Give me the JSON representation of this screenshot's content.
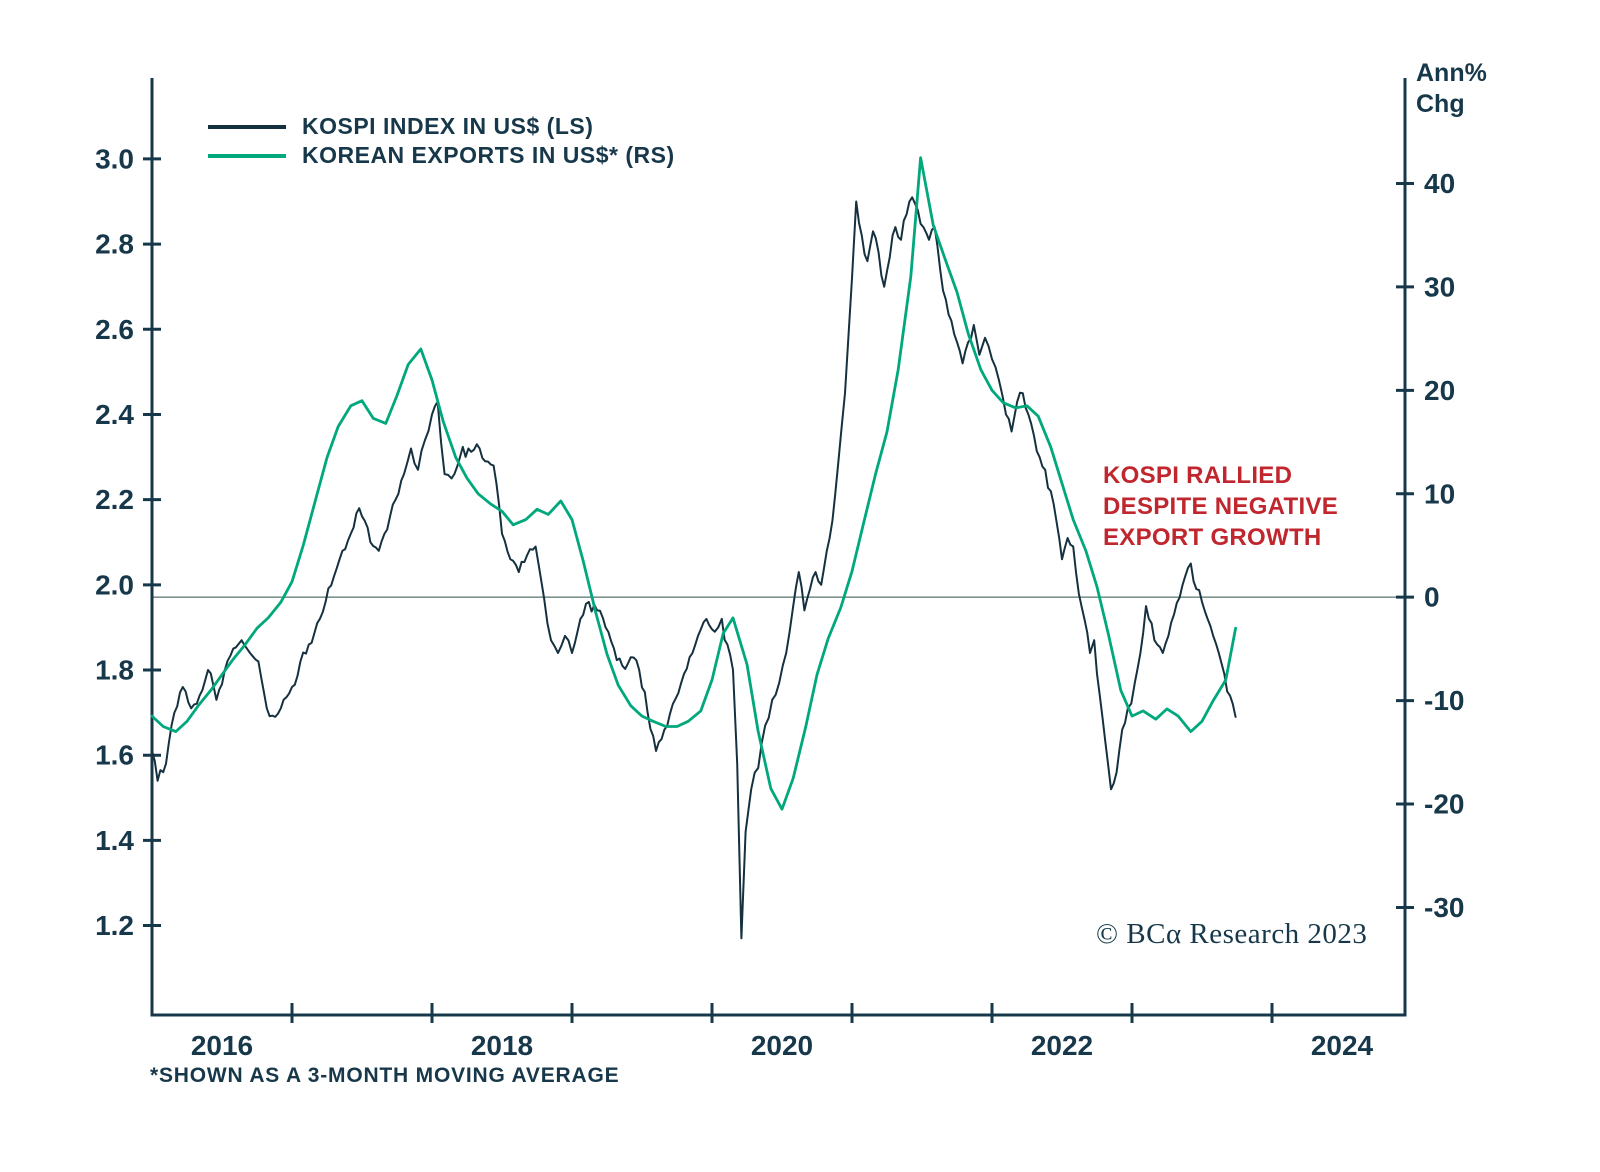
{
  "colors": {
    "navy": "#17384a",
    "kospi_line": "#15313f",
    "exports_line": "#00a87c",
    "annotation_red": "#c0262d",
    "zero_line": "#7d948f",
    "background": "#ffffff"
  },
  "legend": {
    "items": [
      {
        "label": "KOSPI INDEX IN US$ (LS)",
        "color": "#15313f"
      },
      {
        "label": "KOREAN EXPORTS IN US$* (RS)",
        "color": "#00a87c"
      }
    ]
  },
  "right_axis_title": {
    "lines": [
      "Ann%",
      "Chg"
    ]
  },
  "annotation": {
    "color": "#c0262d",
    "lines": [
      "KOSPI RALLIED",
      "DESPITE NEGATIVE",
      "EXPORT GROWTH"
    ]
  },
  "copyright": "© BCα Research 2023",
  "footnote": "*SHOWN AS A 3-MONTH MOVING AVERAGE",
  "chart_data": {
    "type": "line",
    "title": "",
    "x_axis": {
      "lim": [
        2016.0,
        2024.95
      ],
      "tick_marks": [
        2017,
        2018,
        2019,
        2020,
        2021,
        2022,
        2023,
        2024
      ],
      "labels": [
        {
          "x": 2016.5,
          "text": "2016"
        },
        {
          "x": 2018.5,
          "text": "2018"
        },
        {
          "x": 2020.5,
          "text": "2020"
        },
        {
          "x": 2022.5,
          "text": "2022"
        },
        {
          "x": 2024.5,
          "text": "2024"
        }
      ]
    },
    "left_axis": {
      "lim": [
        0.99,
        3.19
      ],
      "ticks": [
        1.2,
        1.4,
        1.6,
        1.8,
        2.0,
        2.2,
        2.4,
        2.6,
        2.8,
        3.0
      ],
      "decimals": 1
    },
    "right_axis": {
      "title": "Ann% Chg",
      "lim": [
        -40.4,
        50.2
      ],
      "ticks": [
        -30,
        -20,
        -10,
        0,
        10,
        20,
        30,
        40
      ],
      "zero_line": true
    },
    "series": [
      {
        "name": "KOSPI INDEX IN US$ (LS)",
        "axis": "left",
        "color": "#15313f",
        "width": 2,
        "noise_amplitude": 0.016,
        "noise_seed": 9,
        "data": [
          [
            2016.0,
            1.61
          ],
          [
            2016.04,
            1.54
          ],
          [
            2016.1,
            1.58
          ],
          [
            2016.16,
            1.7
          ],
          [
            2016.22,
            1.76
          ],
          [
            2016.28,
            1.71
          ],
          [
            2016.34,
            1.74
          ],
          [
            2016.4,
            1.8
          ],
          [
            2016.46,
            1.73
          ],
          [
            2016.52,
            1.8
          ],
          [
            2016.58,
            1.85
          ],
          [
            2016.64,
            1.87
          ],
          [
            2016.7,
            1.84
          ],
          [
            2016.76,
            1.82
          ],
          [
            2016.82,
            1.71
          ],
          [
            2016.88,
            1.69
          ],
          [
            2016.94,
            1.73
          ],
          [
            2017.0,
            1.76
          ],
          [
            2017.06,
            1.82
          ],
          [
            2017.12,
            1.86
          ],
          [
            2017.18,
            1.91
          ],
          [
            2017.24,
            1.96
          ],
          [
            2017.3,
            2.02
          ],
          [
            2017.36,
            2.08
          ],
          [
            2017.42,
            2.12
          ],
          [
            2017.48,
            2.18
          ],
          [
            2017.52,
            2.15
          ],
          [
            2017.56,
            2.1
          ],
          [
            2017.62,
            2.08
          ],
          [
            2017.68,
            2.13
          ],
          [
            2017.74,
            2.2
          ],
          [
            2017.8,
            2.26
          ],
          [
            2017.85,
            2.32
          ],
          [
            2017.9,
            2.27
          ],
          [
            2017.95,
            2.34
          ],
          [
            2018.0,
            2.4
          ],
          [
            2018.04,
            2.43
          ],
          [
            2018.09,
            2.26
          ],
          [
            2018.14,
            2.25
          ],
          [
            2018.2,
            2.3
          ],
          [
            2018.26,
            2.32
          ],
          [
            2018.32,
            2.33
          ],
          [
            2018.38,
            2.29
          ],
          [
            2018.44,
            2.28
          ],
          [
            2018.5,
            2.12
          ],
          [
            2018.56,
            2.06
          ],
          [
            2018.62,
            2.03
          ],
          [
            2018.68,
            2.07
          ],
          [
            2018.74,
            2.09
          ],
          [
            2018.8,
            1.97
          ],
          [
            2018.85,
            1.87
          ],
          [
            2018.9,
            1.84
          ],
          [
            2018.95,
            1.88
          ],
          [
            2019.0,
            1.84
          ],
          [
            2019.06,
            1.92
          ],
          [
            2019.12,
            1.96
          ],
          [
            2019.18,
            1.94
          ],
          [
            2019.24,
            1.9
          ],
          [
            2019.3,
            1.85
          ],
          [
            2019.36,
            1.81
          ],
          [
            2019.42,
            1.83
          ],
          [
            2019.48,
            1.8
          ],
          [
            2019.54,
            1.7
          ],
          [
            2019.6,
            1.61
          ],
          [
            2019.66,
            1.66
          ],
          [
            2019.72,
            1.72
          ],
          [
            2019.78,
            1.77
          ],
          [
            2019.84,
            1.83
          ],
          [
            2019.9,
            1.88
          ],
          [
            2019.96,
            1.92
          ],
          [
            2020.02,
            1.89
          ],
          [
            2020.07,
            1.92
          ],
          [
            2020.11,
            1.86
          ],
          [
            2020.15,
            1.8
          ],
          [
            2020.18,
            1.58
          ],
          [
            2020.21,
            1.17
          ],
          [
            2020.24,
            1.42
          ],
          [
            2020.28,
            1.52
          ],
          [
            2020.33,
            1.57
          ],
          [
            2020.38,
            1.67
          ],
          [
            2020.43,
            1.73
          ],
          [
            2020.48,
            1.77
          ],
          [
            2020.53,
            1.84
          ],
          [
            2020.58,
            1.95
          ],
          [
            2020.62,
            2.03
          ],
          [
            2020.66,
            1.94
          ],
          [
            2020.7,
            1.99
          ],
          [
            2020.74,
            2.03
          ],
          [
            2020.78,
            2.0
          ],
          [
            2020.82,
            2.08
          ],
          [
            2020.86,
            2.15
          ],
          [
            2020.9,
            2.28
          ],
          [
            2020.95,
            2.45
          ],
          [
            2021.0,
            2.72
          ],
          [
            2021.03,
            2.9
          ],
          [
            2021.07,
            2.82
          ],
          [
            2021.11,
            2.76
          ],
          [
            2021.15,
            2.83
          ],
          [
            2021.19,
            2.78
          ],
          [
            2021.23,
            2.7
          ],
          [
            2021.27,
            2.77
          ],
          [
            2021.31,
            2.84
          ],
          [
            2021.35,
            2.81
          ],
          [
            2021.39,
            2.87
          ],
          [
            2021.43,
            2.91
          ],
          [
            2021.47,
            2.88
          ],
          [
            2021.51,
            2.84
          ],
          [
            2021.55,
            2.81
          ],
          [
            2021.59,
            2.84
          ],
          [
            2021.63,
            2.74
          ],
          [
            2021.67,
            2.67
          ],
          [
            2021.71,
            2.62
          ],
          [
            2021.75,
            2.57
          ],
          [
            2021.79,
            2.52
          ],
          [
            2021.83,
            2.57
          ],
          [
            2021.87,
            2.61
          ],
          [
            2021.91,
            2.54
          ],
          [
            2021.95,
            2.58
          ],
          [
            2022.0,
            2.53
          ],
          [
            2022.05,
            2.48
          ],
          [
            2022.1,
            2.4
          ],
          [
            2022.14,
            2.36
          ],
          [
            2022.18,
            2.43
          ],
          [
            2022.22,
            2.45
          ],
          [
            2022.26,
            2.4
          ],
          [
            2022.3,
            2.35
          ],
          [
            2022.34,
            2.3
          ],
          [
            2022.38,
            2.27
          ],
          [
            2022.42,
            2.22
          ],
          [
            2022.46,
            2.15
          ],
          [
            2022.5,
            2.06
          ],
          [
            2022.54,
            2.11
          ],
          [
            2022.58,
            2.09
          ],
          [
            2022.62,
            1.98
          ],
          [
            2022.66,
            1.92
          ],
          [
            2022.7,
            1.84
          ],
          [
            2022.73,
            1.87
          ],
          [
            2022.77,
            1.74
          ],
          [
            2022.81,
            1.63
          ],
          [
            2022.85,
            1.52
          ],
          [
            2022.89,
            1.56
          ],
          [
            2022.93,
            1.66
          ],
          [
            2022.97,
            1.71
          ],
          [
            2023.02,
            1.77
          ],
          [
            2023.06,
            1.84
          ],
          [
            2023.1,
            1.95
          ],
          [
            2023.14,
            1.91
          ],
          [
            2023.18,
            1.86
          ],
          [
            2023.22,
            1.84
          ],
          [
            2023.26,
            1.88
          ],
          [
            2023.3,
            1.93
          ],
          [
            2023.34,
            1.97
          ],
          [
            2023.38,
            2.02
          ],
          [
            2023.42,
            2.05
          ],
          [
            2023.46,
            1.99
          ],
          [
            2023.5,
            1.96
          ],
          [
            2023.54,
            1.92
          ],
          [
            2023.58,
            1.88
          ],
          [
            2023.62,
            1.84
          ],
          [
            2023.66,
            1.79
          ],
          [
            2023.7,
            1.74
          ],
          [
            2023.74,
            1.69
          ]
        ]
      },
      {
        "name": "KOREAN EXPORTS IN US$* (RS)",
        "axis": "right",
        "color": "#00a87c",
        "width": 2.8,
        "data": [
          [
            2016.0,
            -11.5
          ],
          [
            2016.08,
            -12.5
          ],
          [
            2016.17,
            -13.0
          ],
          [
            2016.25,
            -12.0
          ],
          [
            2016.33,
            -10.5
          ],
          [
            2016.42,
            -9.0
          ],
          [
            2016.5,
            -7.5
          ],
          [
            2016.58,
            -6.0
          ],
          [
            2016.67,
            -4.5
          ],
          [
            2016.75,
            -3.0
          ],
          [
            2016.83,
            -2.0
          ],
          [
            2016.92,
            -0.5
          ],
          [
            2017.0,
            1.5
          ],
          [
            2017.08,
            5.0
          ],
          [
            2017.17,
            9.5
          ],
          [
            2017.25,
            13.5
          ],
          [
            2017.33,
            16.5
          ],
          [
            2017.42,
            18.5
          ],
          [
            2017.5,
            19.0
          ],
          [
            2017.58,
            17.3
          ],
          [
            2017.67,
            16.8
          ],
          [
            2017.75,
            19.5
          ],
          [
            2017.83,
            22.5
          ],
          [
            2017.92,
            24.0
          ],
          [
            2018.0,
            21.0
          ],
          [
            2018.08,
            17.0
          ],
          [
            2018.17,
            13.5
          ],
          [
            2018.25,
            11.5
          ],
          [
            2018.33,
            10.0
          ],
          [
            2018.42,
            9.0
          ],
          [
            2018.5,
            8.3
          ],
          [
            2018.58,
            7.0
          ],
          [
            2018.67,
            7.5
          ],
          [
            2018.75,
            8.5
          ],
          [
            2018.83,
            8.0
          ],
          [
            2018.92,
            9.3
          ],
          [
            2019.0,
            7.5
          ],
          [
            2019.08,
            3.5
          ],
          [
            2019.17,
            -1.5
          ],
          [
            2019.25,
            -5.5
          ],
          [
            2019.33,
            -8.5
          ],
          [
            2019.42,
            -10.5
          ],
          [
            2019.5,
            -11.5
          ],
          [
            2019.58,
            -12.0
          ],
          [
            2019.67,
            -12.5
          ],
          [
            2019.75,
            -12.5
          ],
          [
            2019.83,
            -12.0
          ],
          [
            2019.92,
            -11.0
          ],
          [
            2020.0,
            -8.0
          ],
          [
            2020.08,
            -3.5
          ],
          [
            2020.15,
            -2.0
          ],
          [
            2020.25,
            -6.5
          ],
          [
            2020.33,
            -13.0
          ],
          [
            2020.42,
            -18.5
          ],
          [
            2020.5,
            -20.5
          ],
          [
            2020.58,
            -17.5
          ],
          [
            2020.67,
            -12.5
          ],
          [
            2020.75,
            -7.5
          ],
          [
            2020.83,
            -4.0
          ],
          [
            2020.92,
            -1.0
          ],
          [
            2021.0,
            2.5
          ],
          [
            2021.08,
            7.0
          ],
          [
            2021.17,
            12.0
          ],
          [
            2021.25,
            16.0
          ],
          [
            2021.33,
            22.0
          ],
          [
            2021.42,
            31.0
          ],
          [
            2021.49,
            42.5
          ],
          [
            2021.58,
            36.0
          ],
          [
            2021.67,
            32.5
          ],
          [
            2021.75,
            29.5
          ],
          [
            2021.83,
            25.5
          ],
          [
            2021.92,
            22.0
          ],
          [
            2022.0,
            20.0
          ],
          [
            2022.08,
            18.8
          ],
          [
            2022.17,
            18.3
          ],
          [
            2022.25,
            18.5
          ],
          [
            2022.33,
            17.5
          ],
          [
            2022.42,
            14.5
          ],
          [
            2022.5,
            11.0
          ],
          [
            2022.58,
            7.5
          ],
          [
            2022.67,
            4.5
          ],
          [
            2022.75,
            1.0
          ],
          [
            2022.83,
            -3.5
          ],
          [
            2022.92,
            -9.0
          ],
          [
            2023.0,
            -11.5
          ],
          [
            2023.08,
            -11.0
          ],
          [
            2023.17,
            -11.8
          ],
          [
            2023.25,
            -10.8
          ],
          [
            2023.33,
            -11.5
          ],
          [
            2023.42,
            -13.0
          ],
          [
            2023.5,
            -12.0
          ],
          [
            2023.58,
            -10.0
          ],
          [
            2023.67,
            -8.0
          ],
          [
            2023.74,
            -3.0
          ]
        ]
      }
    ]
  }
}
